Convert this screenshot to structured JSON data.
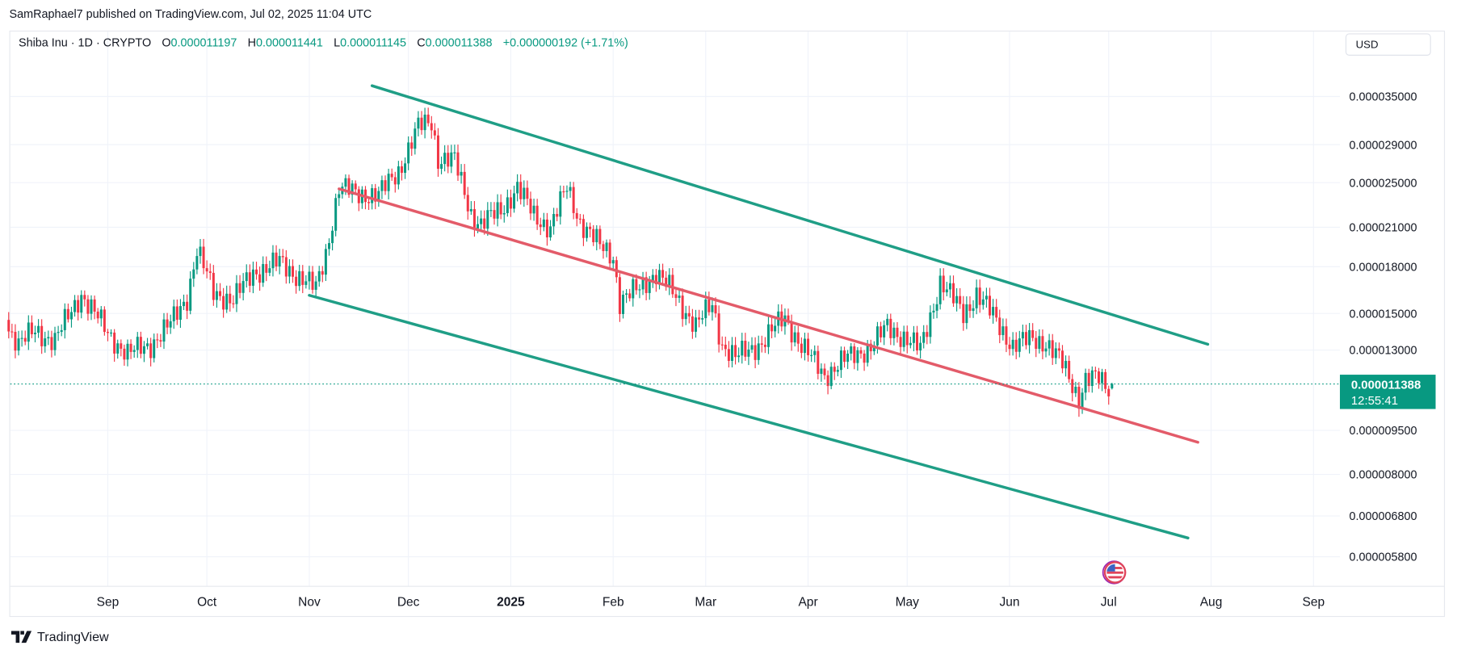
{
  "header": {
    "published": "SamRaphael7 published on TradingView.com, Jul 02, 2025 11:04 UTC"
  },
  "legend": {
    "symbol": "Shiba Inu · 1D · CRYPTO",
    "o_label": "O",
    "o_value": "0.000011197",
    "h_label": "H",
    "h_value": "0.000011441",
    "l_label": "L",
    "l_value": "0.000011145",
    "c_label": "C",
    "c_value": "0.000011388",
    "change": "+0.000000192 (+1.71%)"
  },
  "currency_button": "USD",
  "footer": {
    "brand": "TradingView",
    "logo_icon": "tradingview-logo-icon"
  },
  "event_icon": "us-flag-economic-event-icon",
  "colors": {
    "up": "#089981",
    "down": "#f23645",
    "channel": "#1f9e86",
    "midline": "#e35b69",
    "grid": "#f0f3fa"
  },
  "chart_data": {
    "type": "candlestick",
    "scale": "log",
    "grid": true,
    "ylim": [
      5.4e-06,
      3.8e-05
    ],
    "xlim": [
      "2024-08-02",
      "2025-09-20"
    ],
    "y_ticks": [
      "0.000035000",
      "0.000029000",
      "0.000025000",
      "0.000021000",
      "0.000018000",
      "0.000015000",
      "0.000013000",
      "0.000009500",
      "0.000008000",
      "0.000006800",
      "0.000005800"
    ],
    "x_ticks": [
      {
        "label": "Sep",
        "date": "2024-09-01"
      },
      {
        "label": "Oct",
        "date": "2024-10-01"
      },
      {
        "label": "Nov",
        "date": "2024-11-01"
      },
      {
        "label": "Dec",
        "date": "2024-12-01"
      },
      {
        "label": "2025",
        "date": "2025-01-01",
        "bold": true
      },
      {
        "label": "Feb",
        "date": "2025-02-01"
      },
      {
        "label": "Mar",
        "date": "2025-03-01"
      },
      {
        "label": "Apr",
        "date": "2025-04-01"
      },
      {
        "label": "May",
        "date": "2025-05-01"
      },
      {
        "label": "Jun",
        "date": "2025-06-01"
      },
      {
        "label": "Jul",
        "date": "2025-07-01"
      },
      {
        "label": "Aug",
        "date": "2025-08-01"
      },
      {
        "label": "Sep",
        "date": "2025-09-01"
      }
    ],
    "last_price": {
      "value": "0.000011388",
      "countdown": "12:55:41",
      "price": 1.1388e-05
    },
    "price_path": [
      [
        "2024-08-02",
        1.42e-05
      ],
      [
        "2024-08-05",
        1.33e-05
      ],
      [
        "2024-08-10",
        1.4e-05
      ],
      [
        "2024-08-16",
        1.35e-05
      ],
      [
        "2024-08-24",
        1.62e-05
      ],
      [
        "2024-09-01",
        1.39e-05
      ],
      [
        "2024-09-07",
        1.28e-05
      ],
      [
        "2024-09-14",
        1.33e-05
      ],
      [
        "2024-09-20",
        1.44e-05
      ],
      [
        "2024-09-25",
        1.6e-05
      ],
      [
        "2024-09-28",
        1.92e-05
      ],
      [
        "2024-10-03",
        1.63e-05
      ],
      [
        "2024-10-09",
        1.58e-05
      ],
      [
        "2024-10-15",
        1.76e-05
      ],
      [
        "2024-10-23",
        1.83e-05
      ],
      [
        "2024-10-31",
        1.7e-05
      ],
      [
        "2024-11-03",
        1.65e-05
      ],
      [
        "2024-11-06",
        1.9e-05
      ],
      [
        "2024-11-10",
        2.45e-05
      ],
      [
        "2024-11-15",
        2.4e-05
      ],
      [
        "2024-11-22",
        2.38e-05
      ],
      [
        "2024-11-28",
        2.62e-05
      ],
      [
        "2024-12-04",
        3.1e-05
      ],
      [
        "2024-12-08",
        3.18e-05
      ],
      [
        "2024-12-10",
        2.75e-05
      ],
      [
        "2024-12-15",
        2.72e-05
      ],
      [
        "2024-12-20",
        2.22e-05
      ],
      [
        "2024-12-23",
        2.12e-05
      ],
      [
        "2024-12-29",
        2.25e-05
      ],
      [
        "2025-01-03",
        2.45e-05
      ],
      [
        "2025-01-08",
        2.2e-05
      ],
      [
        "2025-01-13",
        2.1e-05
      ],
      [
        "2025-01-18",
        2.45e-05
      ],
      [
        "2025-01-22",
        2.15e-05
      ],
      [
        "2025-01-28",
        1.95e-05
      ],
      [
        "2025-02-01",
        1.88e-05
      ],
      [
        "2025-02-03",
        1.57e-05
      ],
      [
        "2025-02-08",
        1.64e-05
      ],
      [
        "2025-02-14",
        1.76e-05
      ],
      [
        "2025-02-20",
        1.6e-05
      ],
      [
        "2025-02-26",
        1.43e-05
      ],
      [
        "2025-03-03",
        1.55e-05
      ],
      [
        "2025-03-06",
        1.33e-05
      ],
      [
        "2025-03-10",
        1.26e-05
      ],
      [
        "2025-03-18",
        1.34e-05
      ],
      [
        "2025-03-25",
        1.48e-05
      ],
      [
        "2025-03-30",
        1.32e-05
      ],
      [
        "2025-04-06",
        1.18e-05
      ],
      [
        "2025-04-12",
        1.25e-05
      ],
      [
        "2025-04-20",
        1.32e-05
      ],
      [
        "2025-04-25",
        1.42e-05
      ],
      [
        "2025-04-30",
        1.37e-05
      ],
      [
        "2025-05-05",
        1.3e-05
      ],
      [
        "2025-05-09",
        1.55e-05
      ],
      [
        "2025-05-11",
        1.7e-05
      ],
      [
        "2025-05-18",
        1.5e-05
      ],
      [
        "2025-05-22",
        1.62e-05
      ],
      [
        "2025-05-28",
        1.46e-05
      ],
      [
        "2025-06-02",
        1.32e-05
      ],
      [
        "2025-06-08",
        1.36e-05
      ],
      [
        "2025-06-12",
        1.34e-05
      ],
      [
        "2025-06-17",
        1.23e-05
      ],
      [
        "2025-06-22",
        1.08e-05
      ],
      [
        "2025-06-24",
        1.16e-05
      ],
      [
        "2025-06-28",
        1.16e-05
      ],
      [
        "2025-07-01",
        1.12e-05
      ],
      [
        "2025-07-02",
        1.1388e-05
      ]
    ],
    "trend_lines": [
      {
        "name": "upper-channel",
        "color": "#1f9e86",
        "from": [
          "2024-11-20",
          3.65e-05
        ],
        "to": [
          "2025-07-31",
          1.33e-05
        ]
      },
      {
        "name": "mid-channel",
        "color": "#e35b69",
        "from": [
          "2024-11-10",
          2.44e-05
        ],
        "to": [
          "2025-07-28",
          9.07e-06
        ]
      },
      {
        "name": "lower-channel",
        "color": "#1f9e86",
        "from": [
          "2024-11-01",
          1.61e-05
        ],
        "to": [
          "2025-07-25",
          6.24e-06
        ]
      }
    ]
  }
}
